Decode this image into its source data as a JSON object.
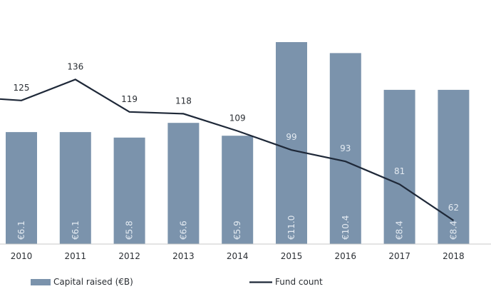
{
  "chart_data": {
    "type": "bar",
    "title": "",
    "xlabel": "",
    "ylabel": "",
    "categories": [
      "2010",
      "2011",
      "2012",
      "2013",
      "2014",
      "2015",
      "2016",
      "2017",
      "2018"
    ],
    "series": [
      {
        "name": "Capital raised (€B)",
        "type": "bar",
        "values": [
          6.1,
          6.1,
          5.8,
          6.6,
          5.9,
          11.0,
          10.4,
          8.4,
          8.4
        ],
        "labels": [
          "€6.1",
          "€6.1",
          "€5.8",
          "€6.6",
          "€5.9",
          "€11.0",
          "€10.4",
          "€8.4",
          "€8.4"
        ],
        "color": "#7b93ac"
      },
      {
        "name": "Fund count",
        "type": "line",
        "values": [
          125,
          136,
          119,
          118,
          109,
          99,
          93,
          81,
          62
        ],
        "labels": [
          "125",
          "136",
          "119",
          "118",
          "109",
          "99",
          "93",
          "81",
          "62"
        ],
        "color": "#1e2838"
      }
    ],
    "ylim_bar": [
      0,
      12.0
    ],
    "ylim_line": [
      0,
      160
    ],
    "grid": false,
    "legend": "bottom"
  }
}
